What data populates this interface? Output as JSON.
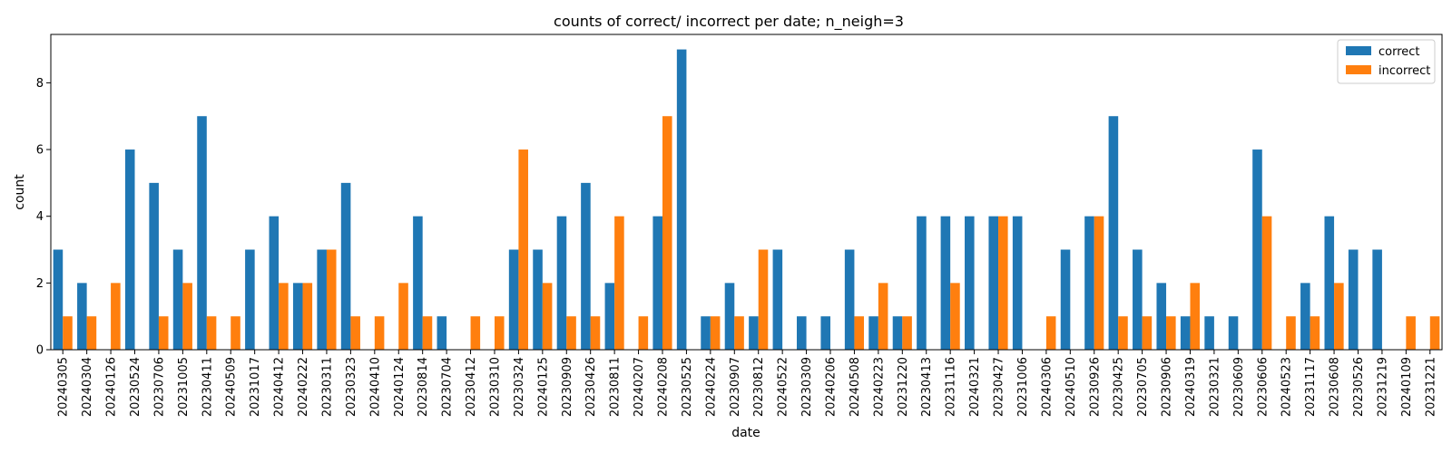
{
  "chart_data": {
    "type": "bar",
    "title": "counts of correct/ incorrect per date; n_neigh=3",
    "xlabel": "date",
    "ylabel": "count",
    "ylim": [
      0,
      9.45
    ],
    "yticks": [
      0,
      2,
      4,
      6,
      8
    ],
    "legend": "top-right",
    "grid": false,
    "categories": [
      "20240305",
      "20240304",
      "20240126",
      "20230524",
      "20230706",
      "20231005",
      "20230411",
      "20240509",
      "20231017",
      "20240412",
      "20240222",
      "20230311",
      "20230323",
      "20240410",
      "20240124",
      "20230814",
      "20230704",
      "20230412",
      "20230310",
      "20230324",
      "20240125",
      "20230909",
      "20230426",
      "20230811",
      "20240207",
      "20240208",
      "20230525",
      "20240224",
      "20230907",
      "20230812",
      "20240522",
      "20230309",
      "20240206",
      "20240508",
      "20240223",
      "20231220",
      "20230413",
      "20231116",
      "20240321",
      "20230427",
      "20231006",
      "20240306",
      "20240510",
      "20230926",
      "20230425",
      "20230705",
      "20230906",
      "20240319",
      "20230321",
      "20230609",
      "20230606",
      "20240523",
      "20231117",
      "20230608",
      "20230526",
      "20231219",
      "20240109",
      "20231221"
    ],
    "series": [
      {
        "name": "correct",
        "color": "#1f77b4",
        "values": [
          3,
          2,
          0,
          6,
          5,
          3,
          7,
          0,
          3,
          4,
          2,
          3,
          5,
          0,
          0,
          4,
          1,
          0,
          0,
          3,
          3,
          4,
          5,
          2,
          0,
          4,
          9,
          1,
          2,
          1,
          3,
          1,
          1,
          3,
          1,
          1,
          4,
          4,
          4,
          4,
          4,
          0,
          3,
          4,
          7,
          3,
          2,
          1,
          1,
          1,
          6,
          0,
          2,
          4,
          3,
          3,
          0,
          0
        ]
      },
      {
        "name": "incorrect",
        "color": "#ff7f0e",
        "values": [
          1,
          1,
          2,
          0,
          1,
          2,
          1,
          1,
          0,
          2,
          2,
          3,
          1,
          1,
          2,
          1,
          0,
          1,
          1,
          6,
          2,
          1,
          1,
          4,
          1,
          7,
          0,
          1,
          1,
          3,
          0,
          0,
          0,
          1,
          2,
          1,
          0,
          2,
          0,
          4,
          0,
          1,
          0,
          4,
          1,
          1,
          1,
          2,
          0,
          0,
          4,
          1,
          1,
          2,
          0,
          0,
          1,
          1
        ]
      }
    ]
  }
}
